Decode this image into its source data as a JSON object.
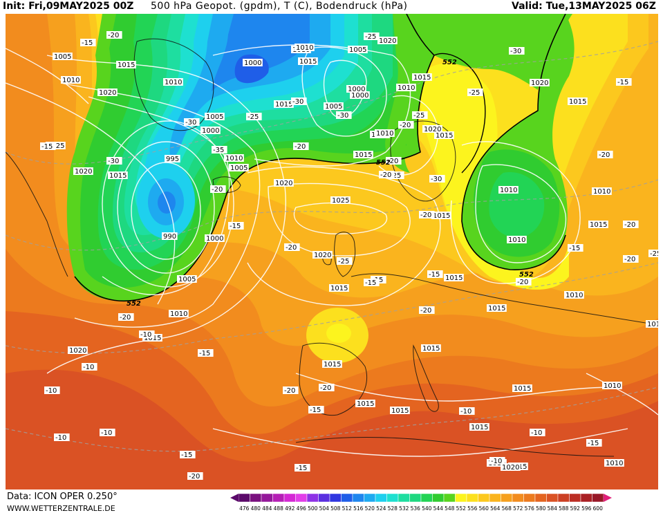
{
  "header": {
    "init": "Init: Fri,09MAY2025 00Z",
    "title": "500 hPa Geopot. (gpdm), T (C), Bodendruck (hPa)",
    "valid": "Valid: Tue,13MAY2025 06Z"
  },
  "footer": {
    "data": "Data: ICON OPER 0.250°",
    "site": "WWW.WETTERZENTRALE.DE"
  },
  "colors": {
    "c476": "#5b0a6a",
    "c480": "#7a117f",
    "c484": "#94189a",
    "c488": "#b51fb5",
    "c492": "#d428d4",
    "c496": "#e23ee8",
    "c500": "#8e32e6",
    "c504": "#5a2fe0",
    "c508": "#2f36e0",
    "c512": "#1f5ee8",
    "c516": "#1e86ee",
    "c520": "#1eaaf0",
    "c524": "#1ed0ee",
    "c528": "#1ee0d0",
    "c532": "#1edea0",
    "c536": "#1ed880",
    "c540": "#22d455",
    "c544": "#30cc30",
    "c548": "#58d41e",
    "c552": "#fcf41e",
    "c556": "#fce01e",
    "c560": "#fcc81e",
    "c564": "#fab41e",
    "c568": "#f6a01e",
    "c572": "#f28c1e",
    "c576": "#ec7a1e",
    "c580": "#e46420",
    "c584": "#da5224",
    "c588": "#cc4024",
    "c592": "#bc2e24",
    "c596": "#aa2024",
    "c600": "#981828"
  },
  "scale_labels": [
    "476",
    "480",
    "484",
    "488",
    "492",
    "496",
    "500",
    "504",
    "508",
    "512",
    "516",
    "520",
    "524",
    "528",
    "532",
    "536",
    "540",
    "544",
    "548",
    "552",
    "556",
    "560",
    "564",
    "568",
    "572",
    "576",
    "580",
    "584",
    "588",
    "592",
    "596",
    "600"
  ],
  "pressure_labels": [
    {
      "t": "1005"
    },
    {
      "t": "1010"
    },
    {
      "t": "1020"
    },
    {
      "t": "1015"
    },
    {
      "t": "1010"
    },
    {
      "t": "1025"
    },
    {
      "t": "1020"
    },
    {
      "t": "1015"
    },
    {
      "t": "995"
    },
    {
      "t": "1005"
    },
    {
      "t": "1000"
    },
    {
      "t": "1010"
    },
    {
      "t": "1005"
    },
    {
      "t": "990"
    },
    {
      "t": "1000"
    },
    {
      "t": "1005"
    },
    {
      "t": "1010"
    },
    {
      "t": "1015"
    },
    {
      "t": "1020"
    },
    {
      "t": "1010"
    },
    {
      "t": "1015"
    },
    {
      "t": "1010"
    },
    {
      "t": "1000"
    },
    {
      "t": "1005"
    },
    {
      "t": "1000"
    },
    {
      "t": "1005"
    },
    {
      "t": "1015"
    },
    {
      "t": "1010"
    },
    {
      "t": "1015"
    },
    {
      "t": "1020"
    },
    {
      "t": "1020"
    },
    {
      "t": "1025"
    },
    {
      "t": "1020"
    },
    {
      "t": "1020"
    },
    {
      "t": "1015"
    },
    {
      "t": "1015"
    },
    {
      "t": "1015"
    },
    {
      "t": "1015"
    },
    {
      "t": "1015"
    },
    {
      "t": "1015"
    },
    {
      "t": "1020"
    },
    {
      "t": "1015"
    },
    {
      "t": "1010"
    },
    {
      "t": "1010"
    },
    {
      "t": "1015"
    },
    {
      "t": "1010"
    },
    {
      "t": "1010"
    },
    {
      "t": "1015"
    },
    {
      "t": "1010"
    },
    {
      "t": "101"
    },
    {
      "t": "1015"
    },
    {
      "t": "1015"
    },
    {
      "t": "1015"
    },
    {
      "t": "1015"
    },
    {
      "t": "1020"
    },
    {
      "t": "1010"
    },
    {
      "t": "1015"
    },
    {
      "t": "1010"
    },
    {
      "t": "1015"
    },
    {
      "t": "1020"
    },
    {
      "t": "1010"
    },
    {
      "t": "1000"
    }
  ],
  "temp_labels": [
    {
      "t": "-15"
    },
    {
      "t": "-20"
    },
    {
      "t": "-15"
    },
    {
      "t": "-30"
    },
    {
      "t": "-20"
    },
    {
      "t": "-30"
    },
    {
      "t": "-25"
    },
    {
      "t": "-30"
    },
    {
      "t": "-25"
    },
    {
      "t": "-35"
    },
    {
      "t": "-30"
    },
    {
      "t": "-30"
    },
    {
      "t": "-20"
    },
    {
      "t": "-25"
    },
    {
      "t": "-20"
    },
    {
      "t": "-15"
    },
    {
      "t": "-20"
    },
    {
      "t": "-20"
    },
    {
      "t": "-25"
    },
    {
      "t": "-20"
    },
    {
      "t": "-25"
    },
    {
      "t": "-20"
    },
    {
      "t": "-25"
    },
    {
      "t": "-30"
    },
    {
      "t": "-15"
    },
    {
      "t": "-15"
    },
    {
      "t": "-20"
    },
    {
      "t": "-15"
    },
    {
      "t": "-20"
    },
    {
      "t": "-15"
    },
    {
      "t": "-20"
    },
    {
      "t": "-20"
    },
    {
      "t": "-10"
    },
    {
      "t": "-10"
    },
    {
      "t": "-15"
    },
    {
      "t": "-10"
    },
    {
      "t": "-10"
    },
    {
      "t": "-10"
    },
    {
      "t": "-15"
    },
    {
      "t": "-20"
    },
    {
      "t": "-20"
    },
    {
      "t": "-20"
    },
    {
      "t": "-15"
    },
    {
      "t": "-10"
    },
    {
      "t": "-10"
    },
    {
      "t": "-10"
    },
    {
      "t": "-15"
    },
    {
      "t": "-20"
    },
    {
      "t": "-25"
    },
    {
      "t": "-20"
    },
    {
      "t": "-15"
    },
    {
      "t": "-15"
    }
  ],
  "isoline_labels": [
    {
      "t": "552"
    },
    {
      "t": "552"
    },
    {
      "t": "552"
    },
    {
      "t": "552"
    }
  ]
}
